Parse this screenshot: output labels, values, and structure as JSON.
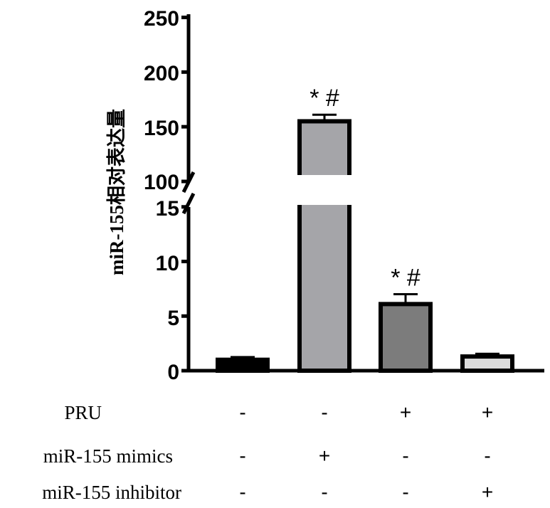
{
  "chart_data": {
    "type": "bar",
    "ylabel": "miR-155相对表达量",
    "axis_break": [
      15,
      100
    ],
    "ylim": [
      0,
      250
    ],
    "yticks_lower": [
      "0",
      "5",
      "10",
      "15"
    ],
    "yticks_upper": [
      "100",
      "150",
      "200",
      "250"
    ],
    "grid": false,
    "values": [
      1.0,
      155,
      6.1,
      1.3
    ],
    "errors": [
      0.25,
      6,
      0.9,
      0.25
    ],
    "annotations": [
      "",
      "* #",
      "* #",
      ""
    ],
    "colors": [
      "#000000",
      "#a5a5a9",
      "#7c7c7c",
      "#dcdcdc"
    ]
  },
  "conditions": [
    {
      "label": "PRU",
      "signs": [
        "-",
        "-",
        "+",
        "+"
      ]
    },
    {
      "label": "miR-155 mimics",
      "signs": [
        "-",
        "+",
        "-",
        "-"
      ]
    },
    {
      "label": "miR-155 inhibitor",
      "signs": [
        "-",
        "-",
        "-",
        "+"
      ]
    }
  ]
}
